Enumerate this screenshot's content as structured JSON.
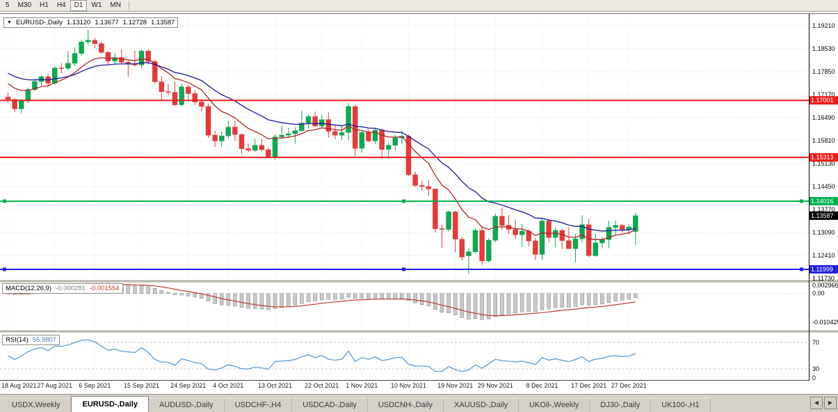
{
  "toolbar": {
    "timeframes": [
      "5",
      "M30",
      "H1",
      "H4",
      "D1",
      "W1",
      "MN"
    ],
    "active": "D1"
  },
  "chart_header": {
    "dropdown_icon": "▼",
    "symbol": "EURUSD-,Daily",
    "open": "1.13120",
    "high": "1.13677",
    "low": "1.12728",
    "close": "1.13587"
  },
  "chart_data": {
    "type": "candlestick",
    "symbol": "EURUSD-",
    "timeframe": "Daily",
    "price_axis_ticks": [
      "1.19210",
      "1.18530",
      "1.17850",
      "1.17170",
      "1.16490",
      "1.15810",
      "1.15130",
      "1.14450",
      "1.13770",
      "1.13090",
      "1.12410",
      "1.11730"
    ],
    "date_ticks": [
      {
        "label": "18 Aug 2021",
        "index": 0
      },
      {
        "label": "27 Aug 2021",
        "index": 7
      },
      {
        "label": "6 Sep 2021",
        "index": 13
      },
      {
        "label": "15 Sep 2021",
        "index": 20
      },
      {
        "label": "24 Sep 2021",
        "index": 27
      },
      {
        "label": "4 Oct 2021",
        "index": 33
      },
      {
        "label": "13 Oct 2021",
        "index": 40
      },
      {
        "label": "22 Oct 2021",
        "index": 47
      },
      {
        "label": "1 Nov 2021",
        "index": 53
      },
      {
        "label": "10 Nov 2021",
        "index": 60
      },
      {
        "label": "19 Nov 2021",
        "index": 67
      },
      {
        "label": "29 Nov 2021",
        "index": 73
      },
      {
        "label": "8 Dec 2021",
        "index": 80
      },
      {
        "label": "17 Dec 2021",
        "index": 87
      },
      {
        "label": "27 Dec 2021",
        "index": 93
      }
    ],
    "candles_ohlc": [
      [
        1.171,
        1.1724,
        1.1694,
        1.1703
      ],
      [
        1.1703,
        1.1708,
        1.1665,
        1.1675
      ],
      [
        1.1675,
        1.1704,
        1.1663,
        1.1698
      ],
      [
        1.1698,
        1.1738,
        1.1692,
        1.1732
      ],
      [
        1.1732,
        1.1765,
        1.1727,
        1.1756
      ],
      [
        1.1756,
        1.1774,
        1.1744,
        1.177
      ],
      [
        1.177,
        1.1779,
        1.1741,
        1.1751
      ],
      [
        1.1751,
        1.1802,
        1.1746,
        1.1796
      ],
      [
        1.1796,
        1.181,
        1.1781,
        1.1795
      ],
      [
        1.1795,
        1.1846,
        1.1789,
        1.181
      ],
      [
        1.181,
        1.1857,
        1.1802,
        1.1839
      ],
      [
        1.1839,
        1.188,
        1.1832,
        1.1873
      ],
      [
        1.1873,
        1.1909,
        1.1866,
        1.1878
      ],
      [
        1.1878,
        1.1885,
        1.1855,
        1.1868
      ],
      [
        1.1868,
        1.1874,
        1.1838,
        1.1842
      ],
      [
        1.1842,
        1.1846,
        1.1804,
        1.1816
      ],
      [
        1.1816,
        1.1841,
        1.1807,
        1.1827
      ],
      [
        1.1827,
        1.1851,
        1.181,
        1.1813
      ],
      [
        1.1813,
        1.1818,
        1.177,
        1.1809
      ],
      [
        1.1809,
        1.1847,
        1.18,
        1.1805
      ],
      [
        1.1805,
        1.1851,
        1.1795,
        1.1846
      ],
      [
        1.1846,
        1.1852,
        1.1807,
        1.1815
      ],
      [
        1.1815,
        1.182,
        1.175,
        1.1755
      ],
      [
        1.1755,
        1.1772,
        1.17,
        1.1726
      ],
      [
        1.1726,
        1.1749,
        1.1715,
        1.1724
      ],
      [
        1.1724,
        1.1756,
        1.1684,
        1.1687
      ],
      [
        1.1687,
        1.175,
        1.1683,
        1.174
      ],
      [
        1.174,
        1.1747,
        1.17,
        1.172
      ],
      [
        1.172,
        1.173,
        1.1685,
        1.1695
      ],
      [
        1.1695,
        1.1705,
        1.1667,
        1.1682
      ],
      [
        1.1682,
        1.169,
        1.1589,
        1.1597
      ],
      [
        1.1597,
        1.161,
        1.1562,
        1.158
      ],
      [
        1.158,
        1.1608,
        1.1562,
        1.1595
      ],
      [
        1.1595,
        1.164,
        1.1586,
        1.1621
      ],
      [
        1.1621,
        1.164,
        1.1581,
        1.1599
      ],
      [
        1.1599,
        1.1602,
        1.1542,
        1.1557
      ],
      [
        1.1557,
        1.1572,
        1.1546,
        1.1552
      ],
      [
        1.1552,
        1.1586,
        1.1548,
        1.1567
      ],
      [
        1.1567,
        1.1586,
        1.1549,
        1.1554
      ],
      [
        1.1554,
        1.156,
        1.1529,
        1.1532
      ],
      [
        1.1532,
        1.16,
        1.1525,
        1.1592
      ],
      [
        1.1592,
        1.1624,
        1.1585,
        1.1597
      ],
      [
        1.1597,
        1.1618,
        1.1588,
        1.1601
      ],
      [
        1.1601,
        1.1621,
        1.1572,
        1.161
      ],
      [
        1.161,
        1.1669,
        1.1609,
        1.1633
      ],
      [
        1.1633,
        1.1658,
        1.1617,
        1.1652
      ],
      [
        1.1652,
        1.1667,
        1.1622,
        1.1624
      ],
      [
        1.1624,
        1.1656,
        1.162,
        1.1643
      ],
      [
        1.1643,
        1.1665,
        1.159,
        1.1608
      ],
      [
        1.1608,
        1.1626,
        1.1585,
        1.1597
      ],
      [
        1.1597,
        1.1626,
        1.1583,
        1.1605
      ],
      [
        1.1605,
        1.1692,
        1.1582,
        1.1682
      ],
      [
        1.1682,
        1.1686,
        1.1535,
        1.1558
      ],
      [
        1.1558,
        1.1609,
        1.1545,
        1.1605
      ],
      [
        1.1605,
        1.1614,
        1.1575,
        1.158
      ],
      [
        1.158,
        1.1617,
        1.1571,
        1.1612
      ],
      [
        1.1612,
        1.1616,
        1.1527,
        1.1555
      ],
      [
        1.1555,
        1.1577,
        1.1527,
        1.1567
      ],
      [
        1.1567,
        1.1598,
        1.1552,
        1.1589
      ],
      [
        1.1589,
        1.1609,
        1.157,
        1.1594
      ],
      [
        1.1594,
        1.1598,
        1.1476,
        1.148
      ],
      [
        1.148,
        1.1489,
        1.1443,
        1.1448
      ],
      [
        1.1448,
        1.1463,
        1.1433,
        1.1445
      ],
      [
        1.1445,
        1.1464,
        1.1417,
        1.1438
      ],
      [
        1.1438,
        1.1439,
        1.1309,
        1.132
      ],
      [
        1.132,
        1.1332,
        1.1263,
        1.1318
      ],
      [
        1.1318,
        1.1374,
        1.1312,
        1.137
      ],
      [
        1.137,
        1.1373,
        1.125,
        1.1289
      ],
      [
        1.1289,
        1.1296,
        1.1226,
        1.1236
      ],
      [
        1.124,
        1.1262,
        1.1186,
        1.1252
      ],
      [
        1.1252,
        1.1322,
        1.1246,
        1.1315
      ],
      [
        1.1315,
        1.1327,
        1.1213,
        1.1225
      ],
      [
        1.1225,
        1.1292,
        1.122,
        1.1286
      ],
      [
        1.1286,
        1.1365,
        1.128,
        1.1357
      ],
      [
        1.1357,
        1.1383,
        1.1318,
        1.133
      ],
      [
        1.133,
        1.136,
        1.1305,
        1.1318
      ],
      [
        1.1318,
        1.1348,
        1.129,
        1.1302
      ],
      [
        1.1302,
        1.1334,
        1.1266,
        1.1313
      ],
      [
        1.1313,
        1.1319,
        1.1267,
        1.1284
      ],
      [
        1.1284,
        1.1293,
        1.1228,
        1.1244
      ],
      [
        1.1244,
        1.1354,
        1.1228,
        1.1343
      ],
      [
        1.1343,
        1.1348,
        1.128,
        1.1294
      ],
      [
        1.1294,
        1.1324,
        1.1264,
        1.1315
      ],
      [
        1.1315,
        1.132,
        1.126,
        1.1285
      ],
      [
        1.1285,
        1.1325,
        1.126,
        1.1261
      ],
      [
        1.1261,
        1.1304,
        1.1221,
        1.129
      ],
      [
        1.129,
        1.136,
        1.128,
        1.1332
      ],
      [
        1.1332,
        1.1349,
        1.1236,
        1.124
      ],
      [
        1.124,
        1.1305,
        1.1237,
        1.1278
      ],
      [
        1.1278,
        1.1296,
        1.1262,
        1.1288
      ],
      [
        1.1288,
        1.1343,
        1.1262,
        1.1324
      ],
      [
        1.1324,
        1.1344,
        1.1303,
        1.133
      ],
      [
        1.133,
        1.1334,
        1.1308,
        1.1318
      ],
      [
        1.1318,
        1.1333,
        1.1304,
        1.1325
      ],
      [
        1.1312,
        1.13677,
        1.12728,
        1.13587
      ]
    ],
    "moving_averages": [
      {
        "name": "ma-fast",
        "period": 10,
        "seed": 1.176,
        "color": "#b22222"
      },
      {
        "name": "ma-slow",
        "period": 21,
        "seed": 1.1788,
        "color": "#16169a"
      }
    ],
    "hlines": [
      {
        "price": 1.17001,
        "label": "1.17001",
        "color": "#ee1c1c",
        "handles": false
      },
      {
        "price": 1.15313,
        "label": "1.15313",
        "color": "#ee1c1c",
        "handles": false
      },
      {
        "price": 1.14016,
        "label": "1.14016",
        "color": "#00b050",
        "handles": true
      },
      {
        "price": 1.11999,
        "label": "1.11999",
        "color": "#2121e0",
        "handles": true
      }
    ],
    "current_price": {
      "value": 1.13587,
      "label": "1.13587",
      "color": "#000000"
    },
    "colors": {
      "bull": "#12a552",
      "bear": "#e03c3c",
      "grid": "#dedede"
    }
  },
  "macd_panel": {
    "label": "MACD(12,26,9)",
    "main_value": "-0.000281",
    "signal_value": "-0.001554",
    "axis_ticks": [
      "0.002966",
      "0.00",
      "-0.010425"
    ],
    "fast": 12,
    "slow": 26,
    "signal": 9,
    "hist_color": "#c9c9c9",
    "hist_border": "#8f8f8f",
    "signal_color": "#c0392b"
  },
  "rsi_panel": {
    "label": "RSI(14)",
    "value": "55.9807",
    "axis_ticks": [
      "70",
      "30",
      "0"
    ],
    "period": 14,
    "levels": [
      70,
      30
    ],
    "line_color": "#5b9bd5"
  },
  "tabs": {
    "active_index": 1,
    "items": [
      {
        "label": "USDX,Weekly"
      },
      {
        "label": "EURUSD-,Daily"
      },
      {
        "label": "AUDUSD-,Daily"
      },
      {
        "label": "USDCHF-,H4"
      },
      {
        "label": "USDCAD-,Daily"
      },
      {
        "label": "USDCNH-,Daily"
      },
      {
        "label": "XAUUSD-,Daily"
      },
      {
        "label": "UKOil-,Weekly"
      },
      {
        "label": "DJ30-,Daily"
      },
      {
        "label": "UK100-,H1"
      }
    ],
    "scroll_left_icon": "◀",
    "scroll_right_icon": "▶"
  }
}
